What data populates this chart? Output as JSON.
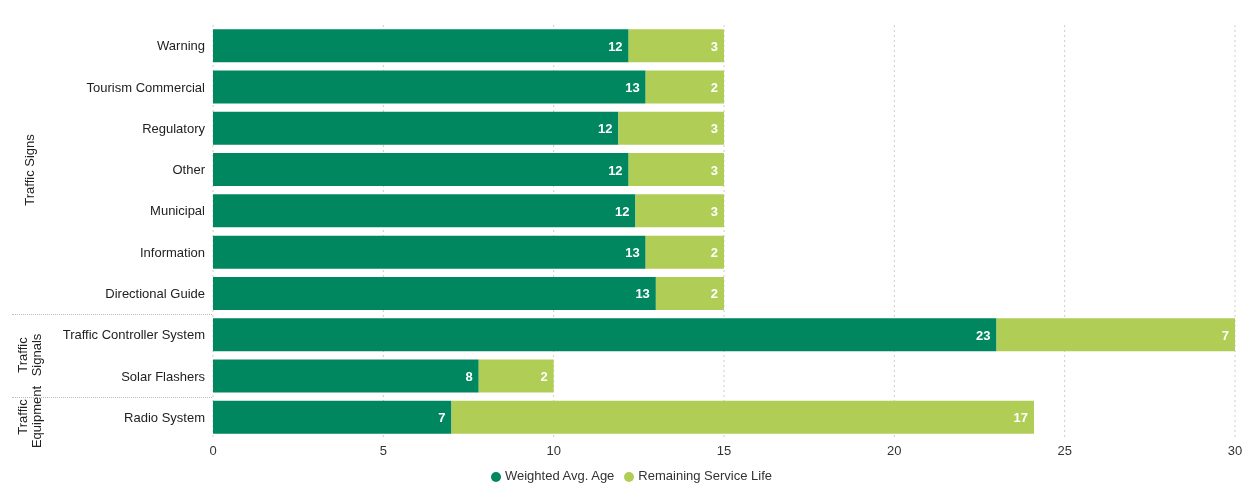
{
  "chart_data": {
    "type": "bar",
    "orientation": "horizontal",
    "stacked": true,
    "categories": [
      "Warning",
      "Tourism Commercial",
      "Regulatory",
      "Other",
      "Municipal",
      "Information",
      "Directional Guide",
      "Traffic Controller System",
      "Solar Flashers",
      "Radio System"
    ],
    "series": [
      {
        "name": "Weighted Avg. Age",
        "color": "#01875f",
        "values": [
          12.2,
          12.7,
          11.9,
          12.2,
          12.4,
          12.7,
          13,
          23,
          7.8,
          7
        ],
        "value_labels": [
          "12",
          "13",
          "12",
          "12",
          "12",
          "13",
          "13",
          "23",
          "8",
          "7"
        ]
      },
      {
        "name": "Remaining Service Life",
        "color": "#b0cd56",
        "values": [
          2.8,
          2.3,
          3.1,
          2.8,
          2.6,
          2.3,
          2,
          7,
          2.2,
          17.1
        ],
        "value_labels": [
          "3",
          "2",
          "3",
          "3",
          "3",
          "2",
          "2",
          "7",
          "2",
          "17"
        ]
      }
    ],
    "xlim": [
      0,
      30
    ],
    "xticks": [
      0,
      5,
      10,
      15,
      20,
      25,
      30
    ],
    "grid": "x",
    "legend": "bottom",
    "annotations": [
      "Traffic Signs",
      "Traffic Signals",
      "Traffic Equipment"
    ]
  }
}
